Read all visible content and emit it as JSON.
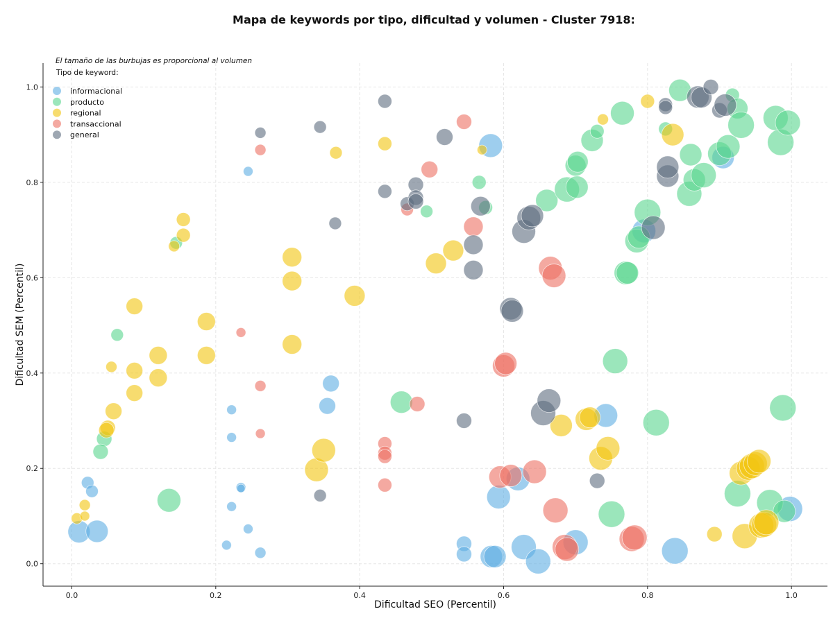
{
  "chart_data": {
    "type": "scatter",
    "title": "Mapa de keywords por tipo, dificultad y volumen - Cluster 7918:",
    "xlabel": "Dificultad SEO (Percentil)",
    "ylabel": "Dificultad SEM (Percentil)",
    "annotation": "El tamaño de las burbujas es proporcional al volumen",
    "legend_title": "Tipo de keyword:",
    "legend_placement": "top-left",
    "xlim": [
      -0.04,
      1.05
    ],
    "ylim": [
      -0.047,
      1.05
    ],
    "xticks": [
      "0.0",
      "0.2",
      "0.4",
      "0.6",
      "0.8",
      "1.0"
    ],
    "yticks": [
      "0.0",
      "0.2",
      "0.4",
      "0.6",
      "0.8",
      "1.0"
    ],
    "grid": true,
    "series": [
      {
        "name": "informacional",
        "color": "#5dade2",
        "points": [
          [
            0.01,
            0.067,
            16
          ],
          [
            0.035,
            0.068,
            16
          ],
          [
            0.022,
            0.17,
            9
          ],
          [
            0.028,
            0.152,
            9
          ],
          [
            0.245,
            0.823,
            7
          ],
          [
            0.222,
            0.323,
            7
          ],
          [
            0.222,
            0.265,
            7
          ],
          [
            0.235,
            0.16,
            7
          ],
          [
            0.235,
            0.158,
            6
          ],
          [
            0.222,
            0.12,
            7
          ],
          [
            0.245,
            0.073,
            7
          ],
          [
            0.262,
            0.023,
            8
          ],
          [
            0.215,
            0.039,
            7
          ],
          [
            0.36,
            0.378,
            12
          ],
          [
            0.355,
            0.331,
            12
          ],
          [
            0.545,
            0.042,
            11
          ],
          [
            0.545,
            0.02,
            11
          ],
          [
            0.582,
            0.877,
            17
          ],
          [
            0.593,
            0.14,
            17
          ],
          [
            0.583,
            0.015,
            16
          ],
          [
            0.588,
            0.015,
            16
          ],
          [
            0.62,
            0.178,
            17
          ],
          [
            0.628,
            0.035,
            18
          ],
          [
            0.648,
            0.005,
            18
          ],
          [
            0.7,
            0.045,
            18
          ],
          [
            0.742,
            0.311,
            17
          ],
          [
            0.838,
            0.027,
            19
          ],
          [
            0.905,
            0.852,
            16
          ],
          [
            0.998,
            0.115,
            18
          ],
          [
            0.795,
            0.698,
            17
          ]
        ]
      },
      {
        "name": "producto",
        "color": "#58d68d",
        "points": [
          [
            0.145,
            0.673,
            9
          ],
          [
            0.063,
            0.48,
            9
          ],
          [
            0.045,
            0.262,
            11
          ],
          [
            0.04,
            0.235,
            11
          ],
          [
            0.135,
            0.133,
            17
          ],
          [
            0.458,
            0.339,
            16
          ],
          [
            0.493,
            0.739,
            9
          ],
          [
            0.566,
            0.8,
            10
          ],
          [
            0.575,
            0.747,
            10
          ],
          [
            0.66,
            0.762,
            16
          ],
          [
            0.688,
            0.785,
            18
          ],
          [
            0.702,
            0.79,
            16
          ],
          [
            0.7,
            0.835,
            15
          ],
          [
            0.703,
            0.843,
            15
          ],
          [
            0.723,
            0.888,
            16
          ],
          [
            0.73,
            0.907,
            10
          ],
          [
            0.755,
            0.425,
            18
          ],
          [
            0.765,
            0.945,
            17
          ],
          [
            0.77,
            0.61,
            17
          ],
          [
            0.772,
            0.61,
            16
          ],
          [
            0.785,
            0.677,
            17
          ],
          [
            0.788,
            0.685,
            16
          ],
          [
            0.8,
            0.737,
            19
          ],
          [
            0.812,
            0.296,
            19
          ],
          [
            0.825,
            0.912,
            10
          ],
          [
            0.845,
            0.993,
            16
          ],
          [
            0.86,
            0.858,
            16
          ],
          [
            0.858,
            0.776,
            18
          ],
          [
            0.865,
            0.805,
            16
          ],
          [
            0.878,
            0.815,
            18
          ],
          [
            0.9,
            0.86,
            17
          ],
          [
            0.912,
            0.875,
            17
          ],
          [
            0.918,
            0.983,
            10
          ],
          [
            0.925,
            0.955,
            15
          ],
          [
            0.93,
            0.92,
            19
          ],
          [
            0.925,
            0.147,
            19
          ],
          [
            0.978,
            0.935,
            18
          ],
          [
            0.985,
            0.884,
            19
          ],
          [
            0.995,
            0.925,
            18
          ],
          [
            0.988,
            0.327,
            19
          ],
          [
            0.97,
            0.128,
            19
          ],
          [
            0.99,
            0.11,
            16
          ],
          [
            0.75,
            0.104,
            19
          ]
        ]
      },
      {
        "name": "regional",
        "color": "#f1c40f",
        "points": [
          [
            0.007,
            0.095,
            8
          ],
          [
            0.018,
            0.123,
            8
          ],
          [
            0.018,
            0.1,
            7
          ],
          [
            0.055,
            0.413,
            8
          ],
          [
            0.058,
            0.32,
            12
          ],
          [
            0.05,
            0.285,
            11
          ],
          [
            0.048,
            0.28,
            11
          ],
          [
            0.087,
            0.54,
            12
          ],
          [
            0.087,
            0.405,
            12
          ],
          [
            0.087,
            0.358,
            12
          ],
          [
            0.12,
            0.437,
            13
          ],
          [
            0.12,
            0.39,
            13
          ],
          [
            0.155,
            0.722,
            10
          ],
          [
            0.155,
            0.689,
            10
          ],
          [
            0.142,
            0.666,
            8
          ],
          [
            0.187,
            0.508,
            13
          ],
          [
            0.187,
            0.437,
            13
          ],
          [
            0.306,
            0.643,
            14
          ],
          [
            0.306,
            0.593,
            14
          ],
          [
            0.306,
            0.46,
            14
          ],
          [
            0.367,
            0.862,
            9
          ],
          [
            0.393,
            0.562,
            15
          ],
          [
            0.435,
            0.881,
            10
          ],
          [
            0.34,
            0.197,
            17
          ],
          [
            0.35,
            0.238,
            17
          ],
          [
            0.506,
            0.63,
            15
          ],
          [
            0.53,
            0.657,
            15
          ],
          [
            0.738,
            0.932,
            8
          ],
          [
            0.8,
            0.97,
            10
          ],
          [
            0.835,
            0.9,
            16
          ],
          [
            0.68,
            0.29,
            16
          ],
          [
            0.715,
            0.303,
            16
          ],
          [
            0.72,
            0.307,
            15
          ],
          [
            0.735,
            0.221,
            17
          ],
          [
            0.745,
            0.242,
            17
          ],
          [
            0.893,
            0.062,
            11
          ],
          [
            0.935,
            0.058,
            18
          ],
          [
            0.93,
            0.19,
            17
          ],
          [
            0.94,
            0.2,
            17
          ],
          [
            0.945,
            0.205,
            18
          ],
          [
            0.95,
            0.21,
            17
          ],
          [
            0.955,
            0.215,
            17
          ],
          [
            0.958,
            0.08,
            18
          ],
          [
            0.962,
            0.082,
            18
          ],
          [
            0.965,
            0.087,
            18
          ],
          [
            0.57,
            0.868,
            7
          ]
        ]
      },
      {
        "name": "transaccional",
        "color": "#ec7063",
        "points": [
          [
            0.262,
            0.868,
            8
          ],
          [
            0.235,
            0.485,
            7
          ],
          [
            0.262,
            0.373,
            8
          ],
          [
            0.262,
            0.273,
            7
          ],
          [
            0.435,
            0.252,
            10
          ],
          [
            0.435,
            0.232,
            10
          ],
          [
            0.435,
            0.225,
            10
          ],
          [
            0.435,
            0.165,
            10
          ],
          [
            0.466,
            0.743,
            9
          ],
          [
            0.48,
            0.335,
            11
          ],
          [
            0.497,
            0.827,
            12
          ],
          [
            0.545,
            0.927,
            11
          ],
          [
            0.558,
            0.707,
            14
          ],
          [
            0.6,
            0.415,
            16
          ],
          [
            0.603,
            0.42,
            16
          ],
          [
            0.595,
            0.182,
            16
          ],
          [
            0.61,
            0.185,
            16
          ],
          [
            0.643,
            0.193,
            17
          ],
          [
            0.665,
            0.62,
            17
          ],
          [
            0.67,
            0.604,
            17
          ],
          [
            0.672,
            0.112,
            18
          ],
          [
            0.685,
            0.035,
            18
          ],
          [
            0.688,
            0.03,
            17
          ],
          [
            0.778,
            0.052,
            18
          ],
          [
            0.782,
            0.055,
            18
          ]
        ]
      },
      {
        "name": "general",
        "color": "#5d6d7e",
        "points": [
          [
            0.262,
            0.904,
            8
          ],
          [
            0.345,
            0.916,
            9
          ],
          [
            0.366,
            0.714,
            9
          ],
          [
            0.345,
            0.143,
            9
          ],
          [
            0.435,
            0.97,
            10
          ],
          [
            0.435,
            0.781,
            10
          ],
          [
            0.466,
            0.755,
            10
          ],
          [
            0.478,
            0.795,
            11
          ],
          [
            0.478,
            0.768,
            11
          ],
          [
            0.478,
            0.76,
            11
          ],
          [
            0.518,
            0.895,
            12
          ],
          [
            0.558,
            0.669,
            14
          ],
          [
            0.558,
            0.616,
            14
          ],
          [
            0.545,
            0.3,
            11
          ],
          [
            0.568,
            0.75,
            14
          ],
          [
            0.61,
            0.535,
            16
          ],
          [
            0.612,
            0.53,
            16
          ],
          [
            0.628,
            0.697,
            17
          ],
          [
            0.635,
            0.725,
            17
          ],
          [
            0.64,
            0.73,
            16
          ],
          [
            0.655,
            0.316,
            18
          ],
          [
            0.663,
            0.342,
            17
          ],
          [
            0.73,
            0.174,
            11
          ],
          [
            0.808,
            0.705,
            17
          ],
          [
            0.828,
            0.813,
            16
          ],
          [
            0.828,
            0.832,
            16
          ],
          [
            0.825,
            0.963,
            10
          ],
          [
            0.825,
            0.957,
            10
          ],
          [
            0.87,
            0.979,
            16
          ],
          [
            0.875,
            0.978,
            15
          ],
          [
            0.888,
            1.0,
            11
          ],
          [
            0.9,
            0.951,
            11
          ],
          [
            0.908,
            0.962,
            16
          ]
        ]
      }
    ]
  }
}
